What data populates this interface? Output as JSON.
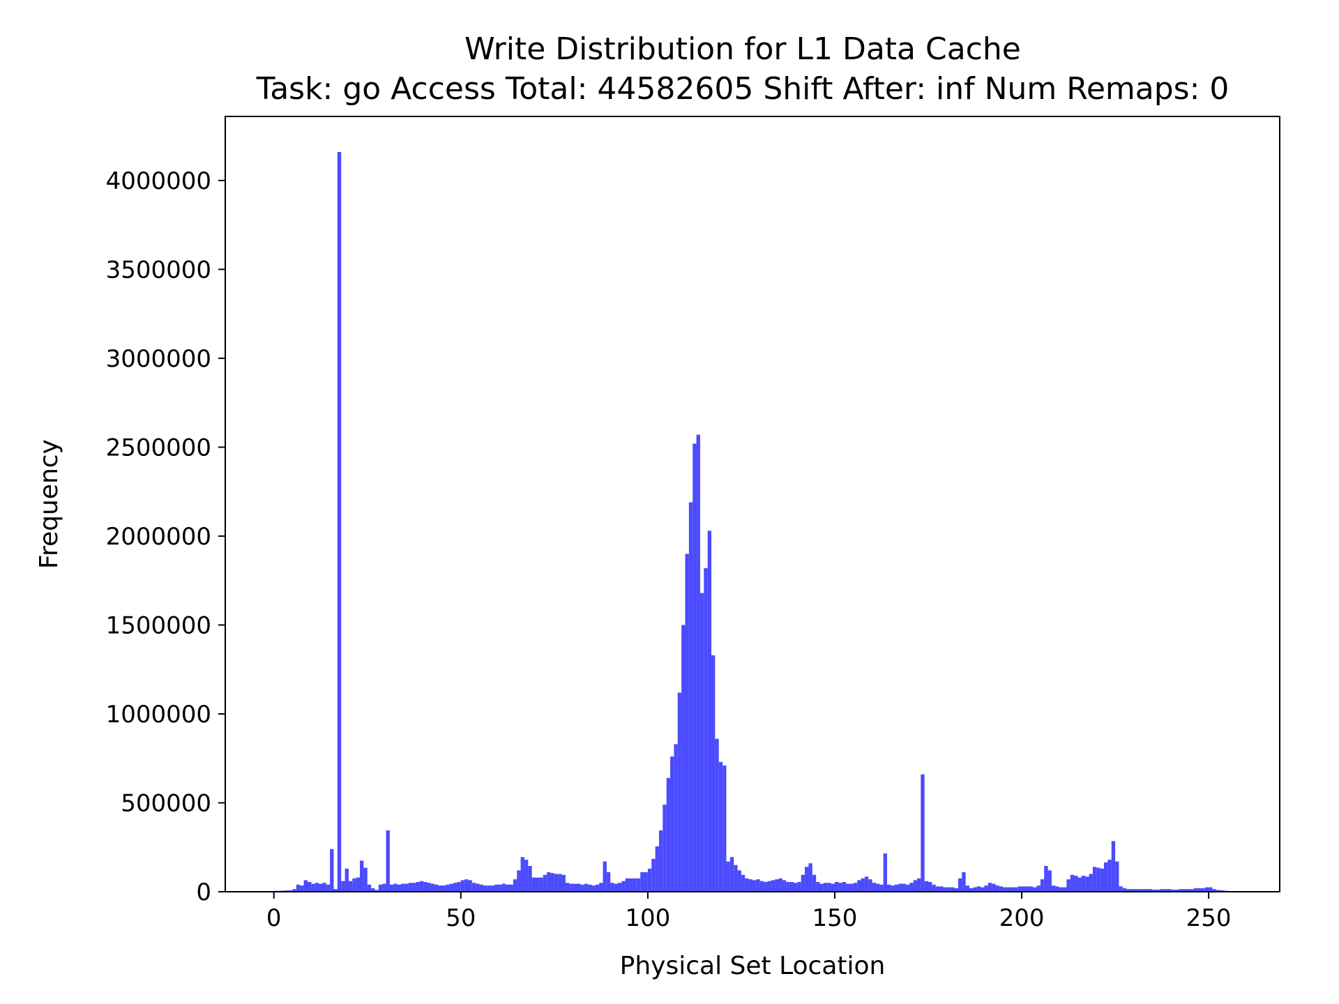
{
  "chart_data": {
    "type": "bar",
    "title": "Write Distribution for L1 Data Cache",
    "subtitle": "Task: go Access Total: 44582605 Shift After: inf Num Remaps: 0",
    "xlabel": "Physical Set Location",
    "ylabel": "Frequency",
    "xlim": [
      -13,
      269
    ],
    "ylim": [
      0,
      4360000
    ],
    "xticks": [
      0,
      50,
      100,
      150,
      200,
      250
    ],
    "yticks": [
      0,
      500000,
      1000000,
      1500000,
      2000000,
      2500000,
      3000000,
      3500000,
      4000000
    ],
    "xtick_labels": [
      "0",
      "50",
      "100",
      "150",
      "200",
      "250"
    ],
    "ytick_labels": [
      "0",
      "500000",
      "1000000",
      "1500000",
      "2000000",
      "2500000",
      "3000000",
      "3500000",
      "4000000"
    ],
    "grid": false,
    "bar_color": "#4b4bff",
    "bins": 256,
    "x_start": 0,
    "x_end": 256,
    "values": [
      5000,
      5000,
      6000,
      7000,
      8000,
      15000,
      40000,
      35000,
      65000,
      55000,
      45000,
      50000,
      45000,
      50000,
      40000,
      240000,
      15000,
      4160000,
      60000,
      130000,
      60000,
      75000,
      80000,
      175000,
      135000,
      40000,
      20000,
      10000,
      40000,
      45000,
      345000,
      40000,
      45000,
      40000,
      45000,
      45000,
      50000,
      50000,
      55000,
      60000,
      55000,
      50000,
      45000,
      40000,
      35000,
      35000,
      40000,
      45000,
      50000,
      55000,
      65000,
      70000,
      65000,
      50000,
      45000,
      40000,
      35000,
      35000,
      35000,
      40000,
      40000,
      45000,
      40000,
      40000,
      70000,
      120000,
      195000,
      180000,
      145000,
      80000,
      80000,
      80000,
      95000,
      110000,
      105000,
      100000,
      100000,
      95000,
      50000,
      45000,
      45000,
      45000,
      40000,
      45000,
      40000,
      35000,
      40000,
      50000,
      170000,
      110000,
      50000,
      45000,
      50000,
      60000,
      75000,
      75000,
      75000,
      75000,
      110000,
      110000,
      130000,
      185000,
      255000,
      345000,
      490000,
      640000,
      760000,
      830000,
      1120000,
      1500000,
      1900000,
      2190000,
      2520000,
      2570000,
      1680000,
      1820000,
      2030000,
      1330000,
      860000,
      730000,
      710000,
      170000,
      195000,
      150000,
      120000,
      95000,
      75000,
      70000,
      65000,
      70000,
      60000,
      55000,
      60000,
      65000,
      70000,
      75000,
      65000,
      55000,
      55000,
      50000,
      55000,
      95000,
      140000,
      160000,
      95000,
      55000,
      45000,
      50000,
      50000,
      45000,
      55000,
      50000,
      55000,
      45000,
      45000,
      50000,
      65000,
      75000,
      85000,
      70000,
      50000,
      45000,
      40000,
      215000,
      40000,
      35000,
      40000,
      45000,
      45000,
      40000,
      50000,
      65000,
      75000,
      660000,
      60000,
      55000,
      40000,
      30000,
      30000,
      25000,
      25000,
      25000,
      20000,
      75000,
      110000,
      35000,
      20000,
      25000,
      30000,
      25000,
      35000,
      50000,
      45000,
      35000,
      30000,
      25000,
      25000,
      25000,
      25000,
      30000,
      30000,
      30000,
      30000,
      25000,
      35000,
      70000,
      145000,
      120000,
      35000,
      30000,
      25000,
      25000,
      70000,
      95000,
      90000,
      80000,
      90000,
      85000,
      100000,
      140000,
      135000,
      130000,
      165000,
      180000,
      285000,
      170000,
      30000,
      20000,
      15000,
      15000,
      15000,
      15000,
      15000,
      15000,
      15000,
      12000,
      12000,
      15000,
      15000,
      15000,
      12000,
      12000,
      15000,
      15000,
      15000,
      15000,
      20000,
      20000,
      20000,
      25000,
      25000,
      15000,
      10000,
      8000,
      6000,
      3000
    ]
  }
}
